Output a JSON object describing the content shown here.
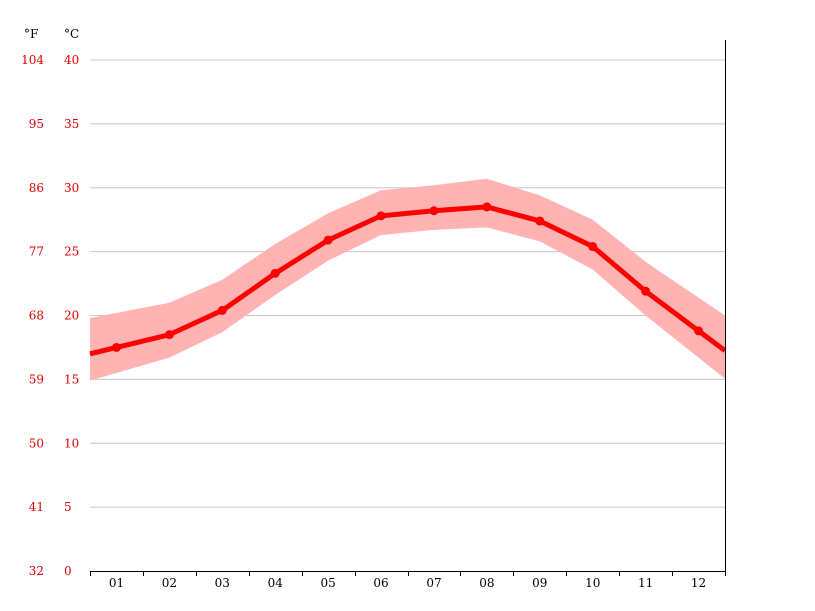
{
  "colors": {
    "axis_labels": "#e00000",
    "line": "#ff0000",
    "band": "#ffb3b3",
    "grid": "#c8c8c8",
    "axis": "#000000"
  },
  "chart_data": {
    "type": "line",
    "title": "",
    "xlabel": "",
    "ylabel": "",
    "categories": [
      "01",
      "02",
      "03",
      "04",
      "05",
      "06",
      "07",
      "08",
      "09",
      "10",
      "11",
      "12"
    ],
    "ylim": [
      0,
      40
    ],
    "grid": true,
    "legend": "none",
    "units": {
      "fahrenheit": "°F",
      "celsius": "°C"
    },
    "y_ticks_celsius": [
      "0",
      "5",
      "10",
      "15",
      "20",
      "25",
      "30",
      "35",
      "40"
    ],
    "y_ticks_fahrenheit": [
      "32",
      "41",
      "50",
      "59",
      "68",
      "77",
      "86",
      "95",
      "104"
    ],
    "series": [
      {
        "values": [
          17.5,
          18.5,
          20.4,
          23.3,
          25.9,
          27.8,
          28.2,
          28.5,
          27.4,
          25.4,
          21.9,
          18.8
        ]
      }
    ],
    "band_upper": [
      20.2,
      21.0,
      22.8,
      25.6,
      28.0,
      29.8,
      30.2,
      30.7,
      29.4,
      27.5,
      24.2,
      21.4
    ],
    "band_lower": [
      15.5,
      16.7,
      18.7,
      21.6,
      24.3,
      26.3,
      26.7,
      26.9,
      25.8,
      23.6,
      20.0,
      16.7
    ]
  }
}
